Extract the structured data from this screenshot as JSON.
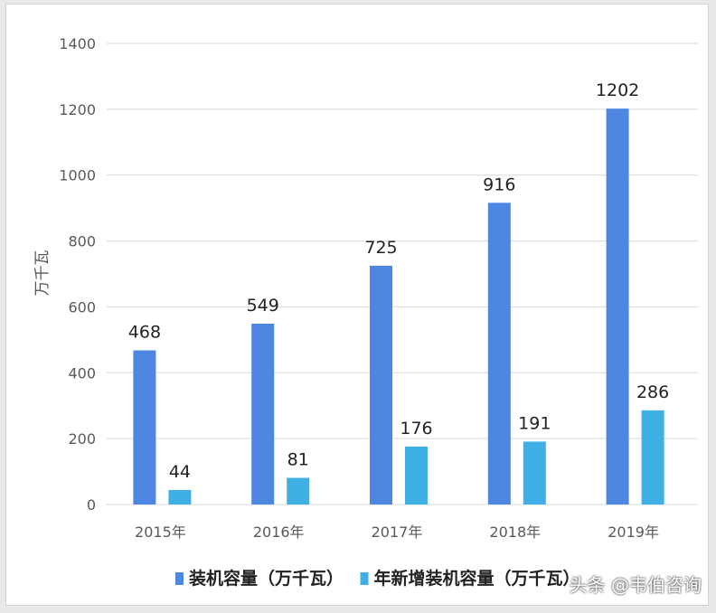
{
  "chart_data": {
    "type": "bar",
    "categories": [
      "2015年",
      "2016年",
      "2017年",
      "2018年",
      "2019年"
    ],
    "series": [
      {
        "name": "装机容量（万千瓦）",
        "values": [
          468,
          549,
          725,
          916,
          1202
        ],
        "color": "#4f86e2"
      },
      {
        "name": "年新增装机容量（万千瓦）",
        "values": [
          44,
          81,
          176,
          191,
          286
        ],
        "color": "#3fb0e6"
      }
    ],
    "ylabel": "万千瓦",
    "ylim": [
      0,
      1400
    ],
    "yticks": [
      0,
      200,
      400,
      600,
      800,
      1000,
      1200,
      1400
    ],
    "grid": true,
    "legend_position": "bottom"
  },
  "watermark": "头条 @韦伯咨询"
}
